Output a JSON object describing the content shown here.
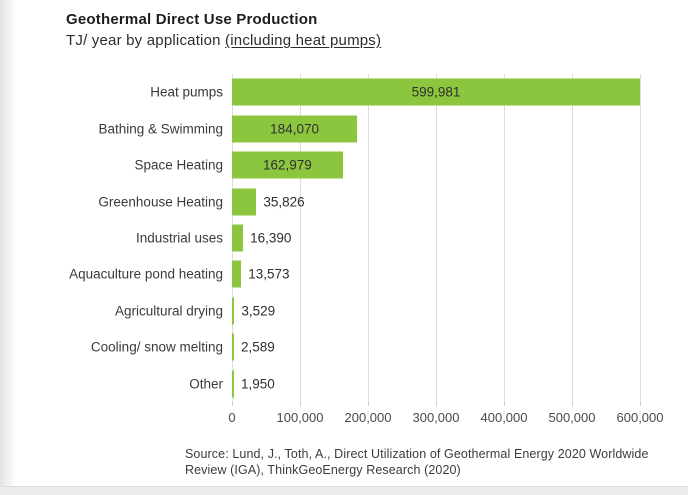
{
  "header": {
    "title": "Geothermal Direct Use Production",
    "subtitle_prefix": "TJ/ year by application ",
    "subtitle_underlined": "(including heat pumps)"
  },
  "source": {
    "line1": "Source: Lund, J., Toth, A., Direct Utilization of Geothermal Energy 2020 Worldwide",
    "line2": "Review (IGA), ThinkGeoEnergy Research (2020)"
  },
  "colors": {
    "bar": "#8cc63f",
    "gridline": "#dcdcdc",
    "tick": "#c9c9c9",
    "text": "#3a3a3a"
  },
  "chart_data": {
    "type": "bar",
    "orientation": "horizontal",
    "title": "Geothermal Direct Use Production",
    "subtitle": "TJ/ year by application (including heat pumps)",
    "xlabel": "TJ/ year",
    "ylabel": "application",
    "categories": [
      "Heat pumps",
      "Bathing & Swimming",
      "Space Heating",
      "Greenhouse Heating",
      "Industrial uses",
      "Aquaculture pond heating",
      "Agricultural drying",
      "Cooling/ snow melting",
      "Other"
    ],
    "values": [
      599981,
      184070,
      162979,
      35826,
      16390,
      13573,
      3529,
      2589,
      1950
    ],
    "value_labels": [
      "599,981",
      "184,070",
      "162,979",
      "35,826",
      "16,390",
      "13,573",
      "3,529",
      "2,589",
      "1,950"
    ],
    "xlim": [
      0,
      600000
    ],
    "x_ticks": [
      0,
      100000,
      200000,
      300000,
      400000,
      500000,
      600000
    ],
    "x_tick_labels": [
      "0",
      "100,000",
      "200,000",
      "300,000",
      "400,000",
      "500,000",
      "600,000"
    ],
    "grid": true,
    "legend": false,
    "bar_color": "#8cc63f",
    "source": "Source: Lund, J., Toth, A., Direct Utilization of Geothermal Energy 2020 Worldwide Review (IGA), ThinkGeoEnergy Research (2020)"
  }
}
